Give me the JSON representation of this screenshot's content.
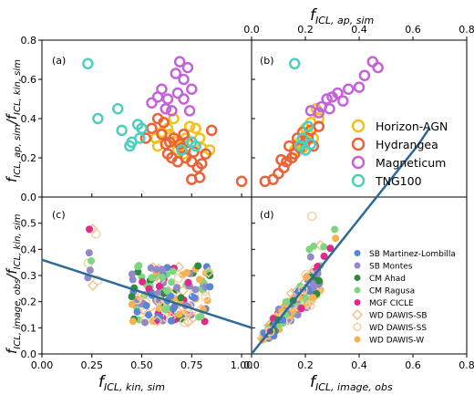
{
  "colors": {
    "horizon": "#f2c21b",
    "hydrangea": "#e8623a",
    "magneticum": "#c463d8",
    "tng": "#4ccfc0",
    "sb_ml": "#5a84d4",
    "sb_montes": "#9289c9",
    "cm_ahad": "#2e8a3e",
    "cm_ragusa": "#7fd67f",
    "mgf": "#e3288c",
    "wd_sb": "#f2c38c",
    "wd_ss": "#f6d2a6",
    "wd_w": "#f6b24e",
    "fitline": "#2d6a9a",
    "oneline": "#2d6a9a"
  },
  "chart_data": [
    {
      "panel": "(a)",
      "type": "scatter",
      "xlim": [
        0,
        1.05
      ],
      "ylim": [
        0,
        0.8
      ],
      "ylabel": "f_ICL,ap,sim / f_ICL,kin,sim",
      "series": [
        {
          "name": "Horizon-AGN",
          "marker": "ring",
          "color_key": "horizon",
          "points": [
            [
              0.57,
              0.3
            ],
            [
              0.6,
              0.33
            ],
            [
              0.63,
              0.35
            ],
            [
              0.64,
              0.32
            ],
            [
              0.66,
              0.4
            ],
            [
              0.67,
              0.28
            ],
            [
              0.7,
              0.27
            ],
            [
              0.72,
              0.3
            ],
            [
              0.74,
              0.36
            ],
            [
              0.77,
              0.35
            ],
            [
              0.79,
              0.3
            ],
            [
              0.8,
              0.25
            ],
            [
              0.84,
              0.24
            ],
            [
              0.62,
              0.45
            ],
            [
              0.58,
              0.26
            ],
            [
              0.68,
              0.24
            ],
            [
              0.71,
              0.22
            ]
          ]
        },
        {
          "name": "Hydrangea",
          "marker": "ring",
          "color_key": "hydrangea",
          "points": [
            [
              0.58,
              0.4
            ],
            [
              0.52,
              0.3
            ],
            [
              0.55,
              0.35
            ],
            [
              0.6,
              0.32
            ],
            [
              0.62,
              0.27
            ],
            [
              0.63,
              0.22
            ],
            [
              0.65,
              0.2
            ],
            [
              0.68,
              0.18
            ],
            [
              0.7,
              0.25
            ],
            [
              0.72,
              0.2
            ],
            [
              0.75,
              0.18
            ],
            [
              0.78,
              0.15
            ],
            [
              0.8,
              0.17
            ],
            [
              0.82,
              0.22
            ],
            [
              0.85,
              0.34
            ],
            [
              0.75,
              0.09
            ],
            [
              1.0,
              0.08
            ],
            [
              0.66,
              0.3
            ],
            [
              0.69,
              0.27
            ],
            [
              0.73,
              0.28
            ],
            [
              0.76,
              0.23
            ],
            [
              0.71,
              0.32
            ],
            [
              0.64,
              0.28
            ],
            [
              0.61,
              0.38
            ],
            [
              0.79,
              0.1
            ]
          ]
        },
        {
          "name": "Magneticum",
          "marker": "ring",
          "color_key": "magneticum",
          "points": [
            [
              0.55,
              0.48
            ],
            [
              0.58,
              0.51
            ],
            [
              0.6,
              0.55
            ],
            [
              0.63,
              0.5
            ],
            [
              0.67,
              0.63
            ],
            [
              0.69,
              0.69
            ],
            [
              0.71,
              0.6
            ],
            [
              0.73,
              0.66
            ],
            [
              0.65,
              0.44
            ],
            [
              0.62,
              0.45
            ],
            [
              0.75,
              0.55
            ],
            [
              0.74,
              0.44
            ],
            [
              0.68,
              0.53
            ],
            [
              0.71,
              0.5
            ]
          ]
        },
        {
          "name": "TNG100",
          "marker": "ring",
          "color_key": "tng",
          "points": [
            [
              0.23,
              0.68
            ],
            [
              0.28,
              0.4
            ],
            [
              0.38,
              0.45
            ],
            [
              0.4,
              0.34
            ],
            [
              0.44,
              0.26
            ],
            [
              0.45,
              0.28
            ],
            [
              0.48,
              0.37
            ],
            [
              0.5,
              0.35
            ],
            [
              0.49,
              0.3
            ],
            [
              0.77,
              0.26
            ],
            [
              0.7,
              0.24
            ],
            [
              0.75,
              0.28
            ]
          ]
        }
      ]
    },
    {
      "panel": "(b)",
      "type": "scatter",
      "xlim": [
        0,
        0.8
      ],
      "ylim": [
        0,
        0.8
      ],
      "xlabel": "f_ICL,ap,sim",
      "xticks": [
        "0.0",
        "0.2",
        "0.4",
        "0.6",
        "0.8"
      ],
      "legend": [
        "Horizon-AGN",
        "Hydrangea",
        "Magneticum",
        "TNG100"
      ],
      "series": [
        {
          "name": "Horizon-AGN",
          "color_key": "horizon",
          "points": [
            [
              0.2,
              0.35
            ],
            [
              0.22,
              0.38
            ],
            [
              0.21,
              0.32
            ],
            [
              0.24,
              0.45
            ],
            [
              0.18,
              0.28
            ],
            [
              0.25,
              0.4
            ],
            [
              0.19,
              0.25
            ],
            [
              0.16,
              0.24
            ],
            [
              0.23,
              0.3
            ]
          ]
        },
        {
          "name": "Hydrangea",
          "color_key": "hydrangea",
          "points": [
            [
              0.05,
              0.08
            ],
            [
              0.08,
              0.09
            ],
            [
              0.1,
              0.12
            ],
            [
              0.12,
              0.15
            ],
            [
              0.13,
              0.18
            ],
            [
              0.15,
              0.2
            ],
            [
              0.16,
              0.22
            ],
            [
              0.18,
              0.25
            ],
            [
              0.2,
              0.28
            ],
            [
              0.21,
              0.3
            ],
            [
              0.22,
              0.34
            ],
            [
              0.25,
              0.36
            ],
            [
              0.14,
              0.26
            ],
            [
              0.17,
              0.3
            ],
            [
              0.11,
              0.19
            ],
            [
              0.19,
              0.33
            ],
            [
              0.23,
              0.26
            ]
          ]
        },
        {
          "name": "Magneticum",
          "color_key": "magneticum",
          "points": [
            [
              0.22,
              0.44
            ],
            [
              0.26,
              0.46
            ],
            [
              0.28,
              0.5
            ],
            [
              0.3,
              0.51
            ],
            [
              0.32,
              0.53
            ],
            [
              0.36,
              0.55
            ],
            [
              0.42,
              0.62
            ],
            [
              0.45,
              0.69
            ],
            [
              0.47,
              0.66
            ],
            [
              0.4,
              0.56
            ],
            [
              0.34,
              0.49
            ],
            [
              0.25,
              0.43
            ],
            [
              0.29,
              0.45
            ]
          ]
        },
        {
          "name": "TNG100",
          "color_key": "tng",
          "points": [
            [
              0.16,
              0.68
            ],
            [
              0.2,
              0.24
            ],
            [
              0.18,
              0.26
            ],
            [
              0.21,
              0.36
            ],
            [
              0.19,
              0.3
            ],
            [
              0.22,
              0.27
            ]
          ]
        }
      ]
    },
    {
      "panel": "(c)",
      "type": "scatter",
      "xlim": [
        0,
        1.05
      ],
      "ylim": [
        0,
        0.6
      ],
      "xlabel": "f_ICL,kin,sim",
      "ylabel": "f_ICL,image,obs / f_ICL,kin,sim",
      "xticks": [
        "0.00",
        "0.25",
        "0.50",
        "0.75",
        "1.00"
      ],
      "fit_line": [
        [
          0,
          0.36
        ],
        [
          1.05,
          0.1
        ]
      ]
    },
    {
      "panel": "(d)",
      "type": "scatter",
      "xlim": [
        0,
        0.8
      ],
      "ylim": [
        0,
        0.6
      ],
      "xlabel": "f_ICL,image,obs",
      "xticks": [
        "0.0",
        "0.2",
        "0.4",
        "0.6",
        "0.8"
      ],
      "one_line": [
        [
          0,
          0
        ],
        [
          0.62,
          0.8
        ]
      ],
      "legend": [
        "SB Martinez-Lombilla",
        "SB Montes",
        "CM Ahad",
        "CM Ragusa",
        "MGF CICLE",
        "WD DAWIS-SB",
        "WD DAWIS-SS",
        "WD DAWIS-W"
      ]
    }
  ],
  "axes": {
    "y_top_ticks": [
      "0.0",
      "0.2",
      "0.4",
      "0.6",
      "0.8"
    ],
    "y_bottom_ticks": [
      "0.0",
      "0.1",
      "0.2",
      "0.3",
      "0.4",
      "0.5"
    ],
    "label_a": "(a)",
    "label_b": "(b)",
    "label_c": "(c)",
    "label_d": "(d)"
  },
  "legend_top": [
    {
      "label": "Horizon-AGN",
      "color_key": "horizon"
    },
    {
      "label": "Hydrangea",
      "color_key": "hydrangea"
    },
    {
      "label": "Magneticum",
      "color_key": "magneticum"
    },
    {
      "label": "TNG100",
      "color_key": "tng"
    }
  ],
  "legend_bottom": [
    {
      "label": "SB Martinez-Lombilla",
      "color_key": "sb_ml",
      "marker": "dot"
    },
    {
      "label": "SB Montes",
      "color_key": "sb_montes",
      "marker": "dot"
    },
    {
      "label": "CM Ahad",
      "color_key": "cm_ahad",
      "marker": "dot"
    },
    {
      "label": "CM Ragusa",
      "color_key": "cm_ragusa",
      "marker": "dot"
    },
    {
      "label": "MGF CICLE",
      "color_key": "mgf",
      "marker": "dot"
    },
    {
      "label": "WD DAWIS-SB",
      "color_key": "wd_sb",
      "marker": "diamond"
    },
    {
      "label": "WD DAWIS-SS",
      "color_key": "wd_ss",
      "marker": "ring"
    },
    {
      "label": "WD DAWIS-W",
      "color_key": "wd_w",
      "marker": "dot"
    }
  ]
}
